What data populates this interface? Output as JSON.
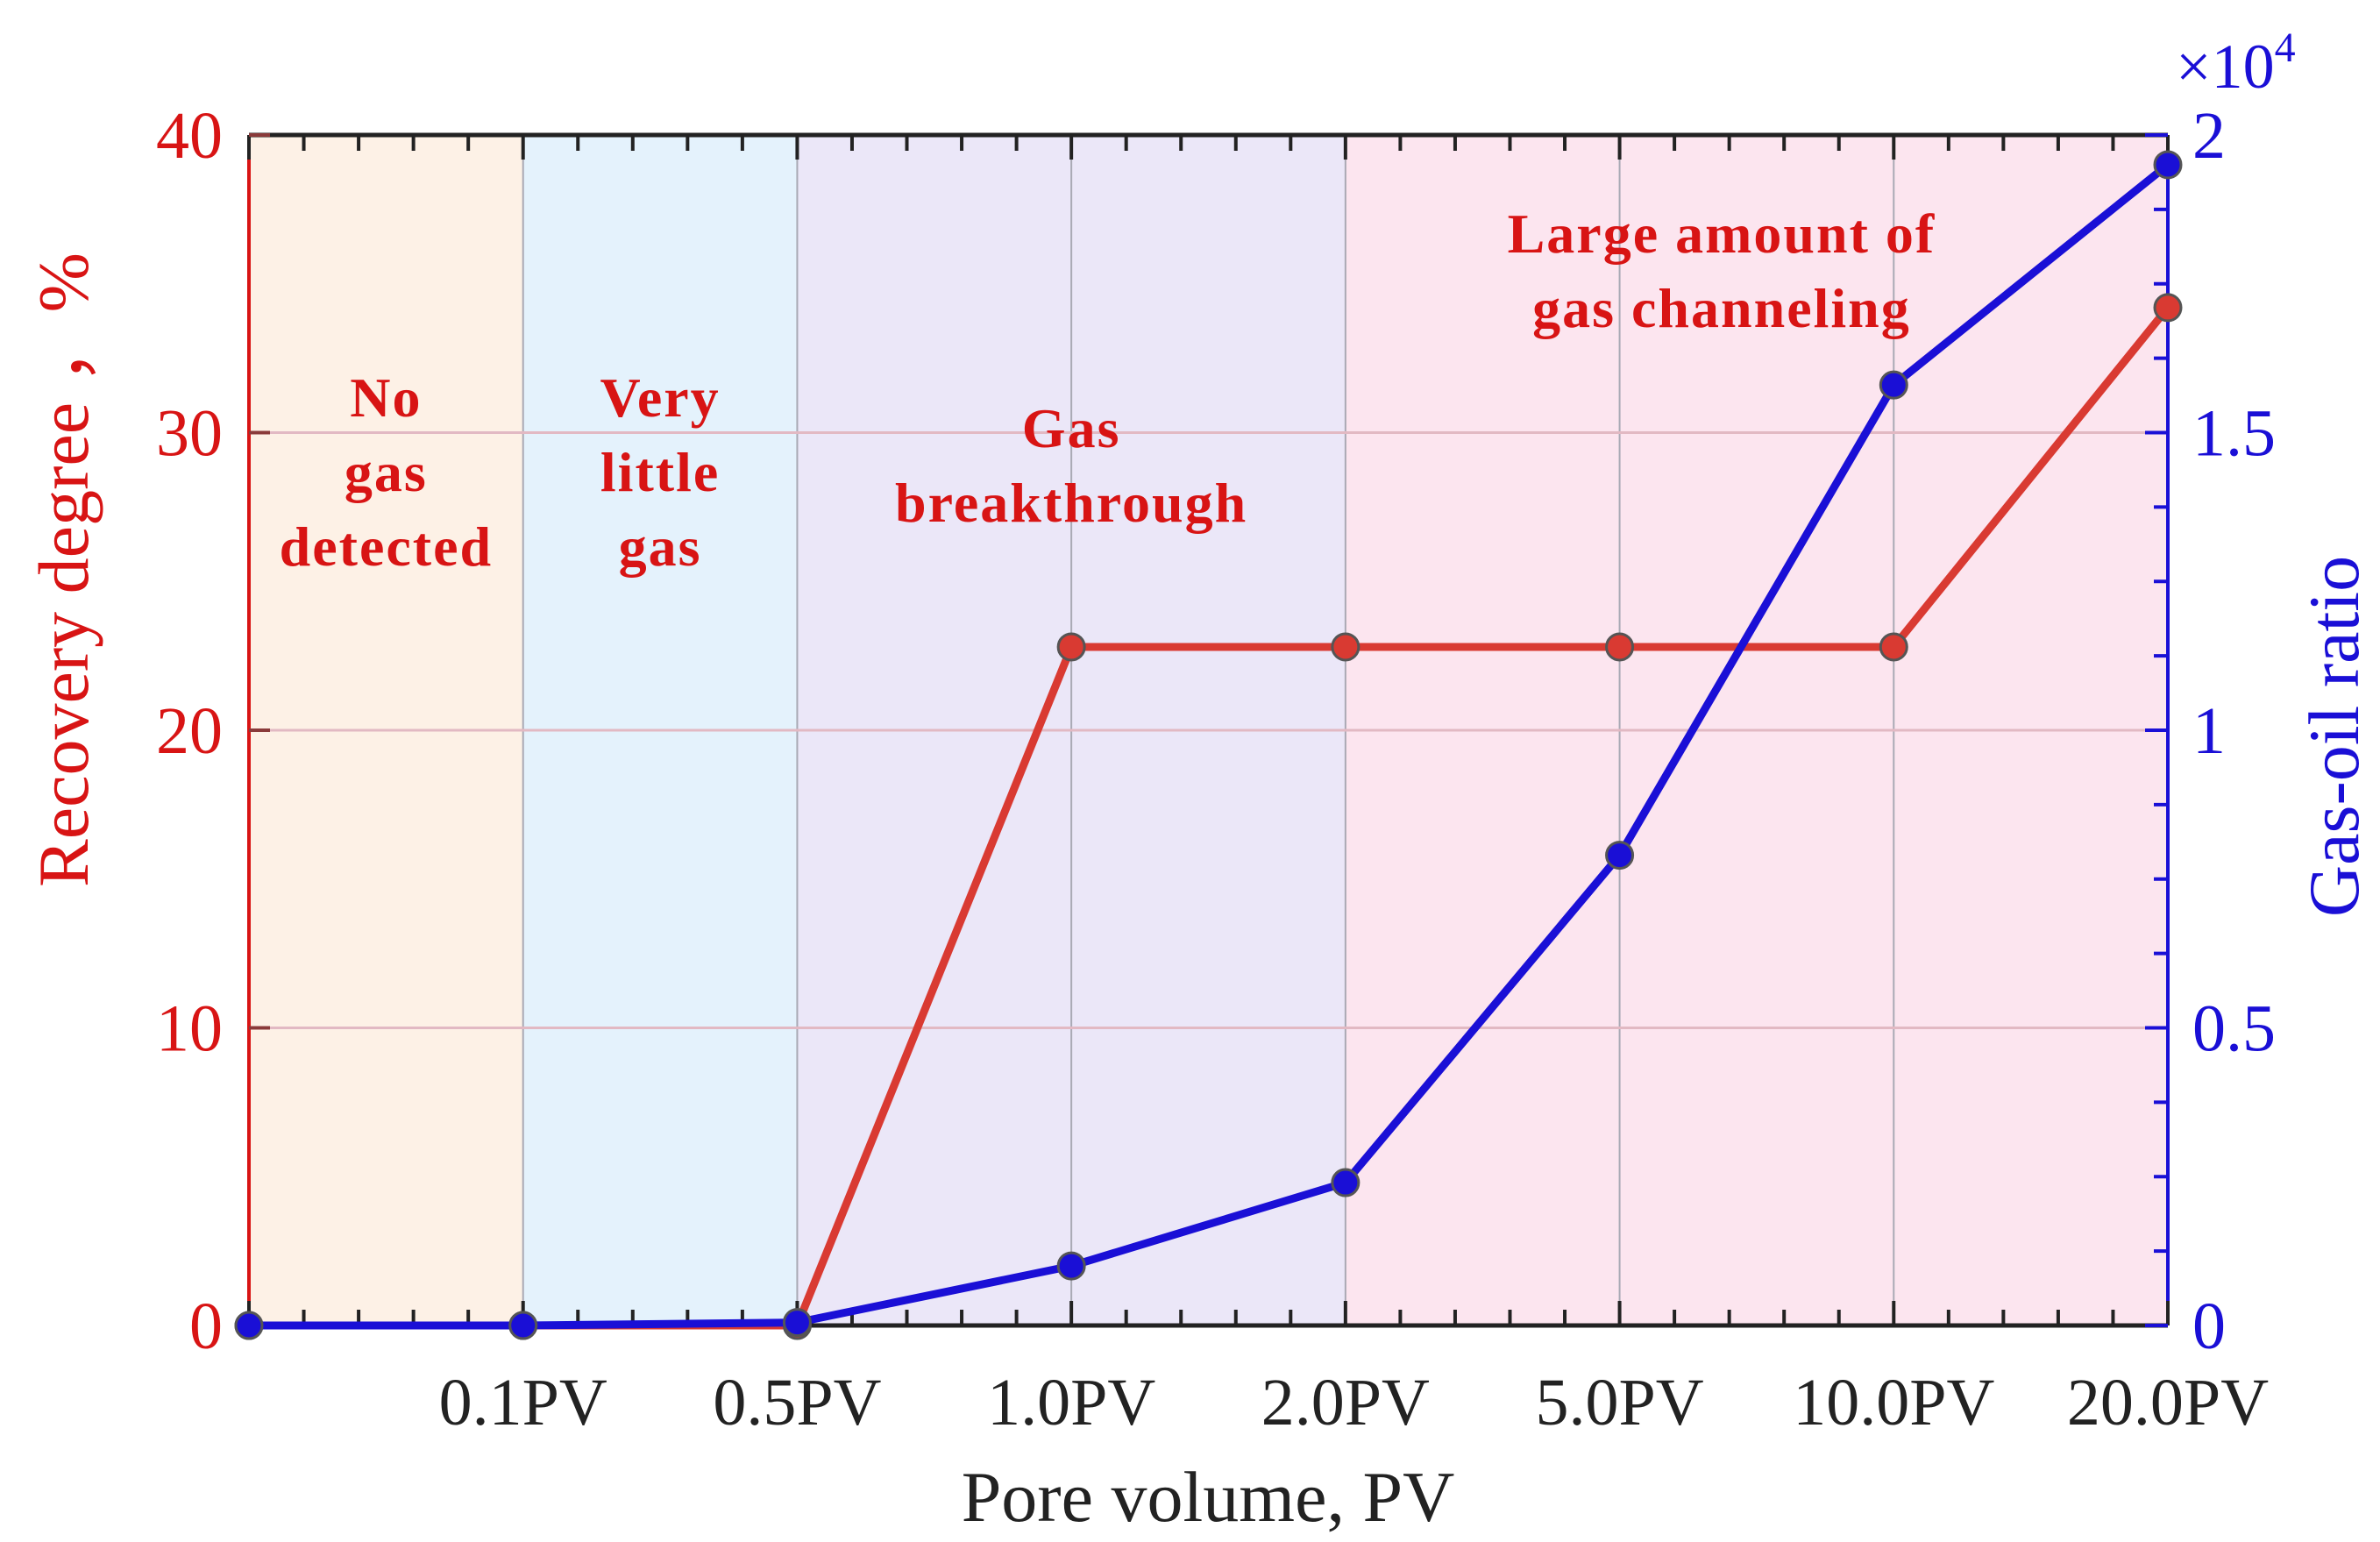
{
  "chart_data": {
    "type": "line",
    "categories": [
      "",
      "0.1PV",
      "0.5PV",
      "1.0PV",
      "2.0PV",
      "5.0PV",
      "10.0PV",
      "20.0PV"
    ],
    "xlabel": "Pore volume, PV",
    "ylabel_left": "Recovery degree ，%",
    "ylabel_right": "Gas-oil ratio",
    "right_multiplier": "×10",
    "right_multiplier_exp": "4",
    "ylim_left": [
      0,
      40
    ],
    "ylim_right": [
      0,
      2
    ],
    "yticks_left": [
      "0",
      "10",
      "20",
      "30",
      "40"
    ],
    "yticks_right": [
      "0",
      "0.5",
      "1",
      "1.5",
      "2"
    ],
    "grid": true,
    "series": [
      {
        "axis": "left",
        "color": "#d93a32",
        "values": [
          0,
          0,
          0,
          22.8,
          22.8,
          22.8,
          22.8,
          34.2
        ]
      },
      {
        "axis": "right",
        "color": "#1a0fd6",
        "values": [
          0,
          0,
          0.005,
          0.1,
          0.24,
          0.79,
          1.58,
          1.95
        ]
      }
    ],
    "regions": [
      {
        "from": 0,
        "to": 1,
        "color": "#fdf1e6",
        "label": [
          "No",
          "gas",
          "detected"
        ]
      },
      {
        "from": 1,
        "to": 2,
        "color": "#e4f2fc",
        "label": [
          "Very",
          "little",
          "gas"
        ]
      },
      {
        "from": 2,
        "to": 4,
        "color": "#ebe7f8",
        "label": [
          "Gas",
          "breakthrough"
        ]
      },
      {
        "from": 4,
        "to": 7,
        "color": "#fce5ef",
        "label": [
          "Large amount of",
          "gas channeling"
        ]
      }
    ],
    "colors": {
      "left_axis": "#d81414",
      "right_axis": "#1a0fd6",
      "annotation": "#d81414"
    }
  }
}
